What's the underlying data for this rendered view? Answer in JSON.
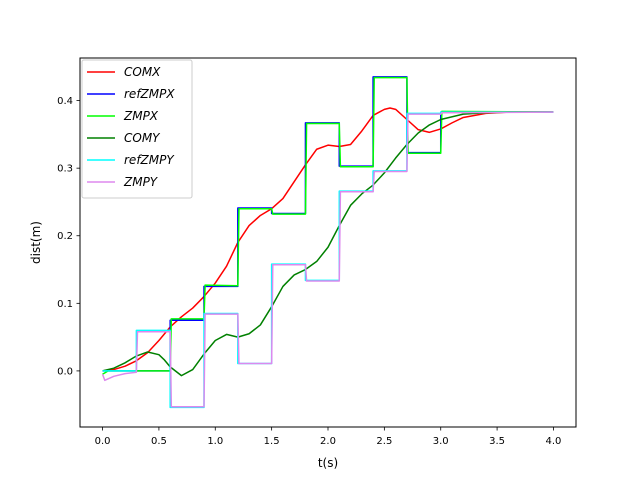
{
  "chart_data": {
    "type": "line",
    "xlabel": "t(s)",
    "ylabel": "dist(m)",
    "xlim": [
      -0.2,
      4.2
    ],
    "ylim": [
      -0.083,
      0.463
    ],
    "x_ticks": [
      0.0,
      0.5,
      1.0,
      1.5,
      2.0,
      2.5,
      3.0,
      3.5,
      4.0
    ],
    "x_tick_labels": [
      "0.0",
      "0.5",
      "1.0",
      "1.5",
      "2.0",
      "2.5",
      "3.0",
      "3.5",
      "4.0"
    ],
    "y_ticks": [
      0.0,
      0.1,
      0.2,
      0.3,
      0.4
    ],
    "y_tick_labels": [
      "0.0",
      "0.1",
      "0.2",
      "0.3",
      "0.4"
    ],
    "grid": false,
    "legend_position": "top-left",
    "series": [
      {
        "name": "COMX",
        "color": "#ff0000",
        "x": [
          0.0,
          0.1,
          0.2,
          0.3,
          0.4,
          0.5,
          0.6,
          0.7,
          0.8,
          0.9,
          1.0,
          1.1,
          1.2,
          1.3,
          1.4,
          1.5,
          1.6,
          1.7,
          1.8,
          1.9,
          2.0,
          2.1,
          2.2,
          2.3,
          2.4,
          2.5,
          2.55,
          2.6,
          2.7,
          2.8,
          2.9,
          3.0,
          3.1,
          3.2,
          3.4,
          3.6,
          4.0
        ],
        "y": [
          0.0,
          0.002,
          0.007,
          0.015,
          0.027,
          0.045,
          0.065,
          0.08,
          0.093,
          0.11,
          0.13,
          0.155,
          0.19,
          0.215,
          0.23,
          0.24,
          0.255,
          0.28,
          0.305,
          0.328,
          0.334,
          0.332,
          0.335,
          0.355,
          0.378,
          0.387,
          0.389,
          0.387,
          0.372,
          0.357,
          0.353,
          0.358,
          0.367,
          0.375,
          0.381,
          0.383,
          0.383
        ]
      },
      {
        "name": "refZMPX",
        "color": "#0000ff",
        "x": [
          0.0,
          0.3,
          0.3,
          0.6,
          0.6,
          0.9,
          0.9,
          1.2,
          1.2,
          1.5,
          1.5,
          1.8,
          1.8,
          2.1,
          2.1,
          2.4,
          2.4,
          2.7,
          2.7,
          3.0,
          3.0,
          4.0
        ],
        "y": [
          0.0,
          0.0,
          0.0,
          0.0,
          0.075,
          0.075,
          0.125,
          0.125,
          0.241,
          0.241,
          0.233,
          0.233,
          0.367,
          0.367,
          0.303,
          0.303,
          0.435,
          0.435,
          0.323,
          0.323,
          0.383,
          0.383
        ]
      },
      {
        "name": "ZMPX",
        "color": "#00ff00",
        "x": [
          0.0,
          0.05,
          0.3,
          0.6,
          0.61,
          0.9,
          0.91,
          1.2,
          1.21,
          1.5,
          1.51,
          1.8,
          1.81,
          2.1,
          2.11,
          2.4,
          2.41,
          2.7,
          2.71,
          3.0,
          3.01,
          4.0
        ],
        "y": [
          -0.005,
          0.0,
          0.0,
          0.0,
          0.077,
          0.077,
          0.127,
          0.126,
          0.24,
          0.24,
          0.232,
          0.232,
          0.366,
          0.366,
          0.302,
          0.302,
          0.434,
          0.434,
          0.322,
          0.322,
          0.384,
          0.383
        ]
      },
      {
        "name": "COMY",
        "color": "#008000",
        "x": [
          0.0,
          0.1,
          0.2,
          0.3,
          0.4,
          0.5,
          0.55,
          0.6,
          0.7,
          0.8,
          0.9,
          1.0,
          1.1,
          1.2,
          1.3,
          1.4,
          1.5,
          1.6,
          1.7,
          1.8,
          1.9,
          2.0,
          2.1,
          2.2,
          2.3,
          2.4,
          2.5,
          2.6,
          2.7,
          2.8,
          2.9,
          3.0,
          3.2,
          3.4,
          3.6,
          4.0
        ],
        "y": [
          0.0,
          0.004,
          0.012,
          0.022,
          0.028,
          0.024,
          0.016,
          0.006,
          -0.007,
          0.002,
          0.025,
          0.045,
          0.054,
          0.05,
          0.055,
          0.068,
          0.095,
          0.125,
          0.142,
          0.15,
          0.162,
          0.183,
          0.215,
          0.245,
          0.262,
          0.275,
          0.293,
          0.315,
          0.335,
          0.352,
          0.364,
          0.372,
          0.38,
          0.382,
          0.383,
          0.383
        ]
      },
      {
        "name": "refZMPY",
        "color": "#00ffff",
        "x": [
          0.0,
          0.3,
          0.3,
          0.6,
          0.6,
          0.9,
          0.9,
          1.2,
          1.2,
          1.5,
          1.5,
          1.8,
          1.8,
          2.1,
          2.1,
          2.4,
          2.4,
          2.7,
          2.7,
          3.0,
          3.0,
          4.0
        ],
        "y": [
          0.0,
          0.0,
          0.06,
          0.06,
          -0.054,
          -0.054,
          0.085,
          0.085,
          0.011,
          0.011,
          0.158,
          0.158,
          0.134,
          0.134,
          0.266,
          0.266,
          0.296,
          0.296,
          0.381,
          0.381,
          0.383,
          0.383
        ]
      },
      {
        "name": "ZMPY",
        "color": "#dd88ee",
        "x": [
          0.0,
          0.02,
          0.1,
          0.2,
          0.3,
          0.31,
          0.6,
          0.61,
          0.9,
          0.91,
          1.2,
          1.21,
          1.5,
          1.51,
          1.8,
          1.81,
          2.1,
          2.11,
          2.4,
          2.41,
          2.7,
          2.71,
          3.0,
          3.01,
          4.0
        ],
        "y": [
          -0.005,
          -0.014,
          -0.008,
          -0.004,
          -0.002,
          0.058,
          0.058,
          -0.053,
          -0.053,
          0.084,
          0.084,
          0.011,
          0.011,
          0.157,
          0.157,
          0.133,
          0.133,
          0.265,
          0.265,
          0.295,
          0.295,
          0.38,
          0.38,
          0.382,
          0.383
        ]
      }
    ]
  }
}
